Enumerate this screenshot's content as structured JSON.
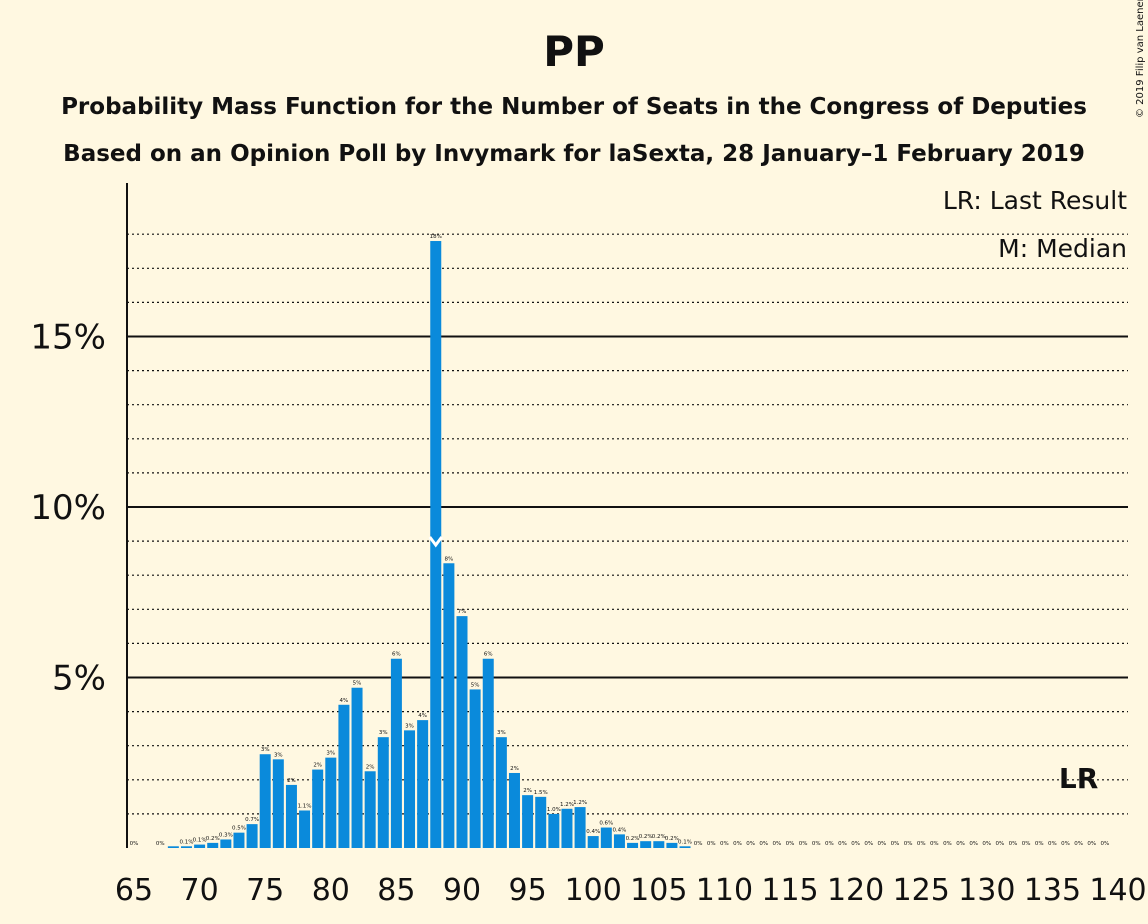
{
  "copyright": "© 2019 Filip van Laenen",
  "chart_data": {
    "type": "bar",
    "title": "PP",
    "subtitle": "Probability Mass Function for the Number of Seats in the Congress of Deputies",
    "subtitle2": "Based on an Opinion Poll by Invymark for laSexta, 28 January–1 February 2019",
    "legend": [
      "LR: Last Result",
      "M: Median"
    ],
    "lr_marker": "LR",
    "last_result": 137,
    "median": 88,
    "xlim": [
      65,
      140
    ],
    "ylim": [
      0,
      19
    ],
    "xticks": [
      65,
      70,
      75,
      80,
      85,
      90,
      95,
      100,
      105,
      110,
      115,
      120,
      125,
      130,
      135,
      140
    ],
    "xtick_labels": [
      "65",
      "70",
      "75",
      "80",
      "85",
      "90",
      "95",
      "100",
      "105",
      "110",
      "115",
      "120",
      "125",
      "130",
      "135",
      "140"
    ],
    "yticks": [
      5,
      10,
      15
    ],
    "ytick_labels": [
      "5%",
      "10%",
      "15%"
    ],
    "grid": "dotted every 1%",
    "colors": {
      "bar": "#0A8ADB",
      "background": "#FFF8E1",
      "text": "#111111"
    },
    "x": [
      65,
      66,
      67,
      68,
      69,
      70,
      71,
      72,
      73,
      74,
      75,
      76,
      77,
      78,
      79,
      80,
      81,
      82,
      83,
      84,
      85,
      86,
      87,
      88,
      89,
      90,
      91,
      92,
      93,
      94,
      95,
      96,
      97,
      98,
      99,
      100,
      101,
      102,
      103,
      104,
      105,
      106,
      107,
      108,
      109,
      110,
      111,
      112,
      113,
      114,
      115,
      116,
      117,
      118,
      119,
      120,
      121,
      122,
      123,
      124,
      125,
      126,
      127,
      128,
      129,
      130,
      131,
      132,
      133,
      134,
      135,
      136,
      137,
      138,
      139
    ],
    "values": [
      0,
      0,
      0,
      0.05,
      0.05,
      0.1,
      0.15,
      0.25,
      0.45,
      0.7,
      2.75,
      2.6,
      1.85,
      1.1,
      2.3,
      2.65,
      4.2,
      4.7,
      2.25,
      3.25,
      5.55,
      3.45,
      3.75,
      17.8,
      8.35,
      6.8,
      4.65,
      5.55,
      3.25,
      2.2,
      1.55,
      1.5,
      1.0,
      1.15,
      1.2,
      0.35,
      0.6,
      0.4,
      0.15,
      0.2,
      0.2,
      0.15,
      0.05,
      0,
      0,
      0,
      0,
      0,
      0,
      0,
      0,
      0,
      0,
      0,
      0,
      0,
      0,
      0,
      0,
      0,
      0,
      0,
      0,
      0,
      0,
      0,
      0,
      0,
      0,
      0,
      0,
      0,
      0,
      0,
      0
    ],
    "labels": [
      "0%",
      "",
      "0%",
      "",
      "0.1%",
      "0.1%",
      "0.2%",
      "0.3%",
      "0.5%",
      "0.7%",
      "3%",
      "3%",
      "2%",
      "1.1%",
      "2%",
      "3%",
      "4%",
      "5%",
      "2%",
      "3%",
      "6%",
      "3%",
      "4%",
      "18%",
      "8%",
      "7%",
      "5%",
      "6%",
      "3%",
      "2%",
      "2%",
      "1.5%",
      "1.0%",
      "1.2%",
      "1.2%",
      "0.4%",
      "0.6%",
      "0.4%",
      "0.2%",
      "0.2%",
      "0.2%",
      "0.2%",
      "0.1%",
      "0%",
      "0%",
      "0%",
      "0%",
      "0%",
      "0%",
      "0%",
      "0%",
      "0%",
      "0%",
      "0%",
      "0%",
      "0%",
      "0%",
      "0%",
      "0%",
      "0%",
      "0%",
      "0%",
      "0%",
      "0%",
      "0%",
      "0%",
      "0%",
      "0%",
      "0%",
      "0%",
      "0%",
      "0%",
      "0%",
      "0%",
      "0%"
    ]
  }
}
